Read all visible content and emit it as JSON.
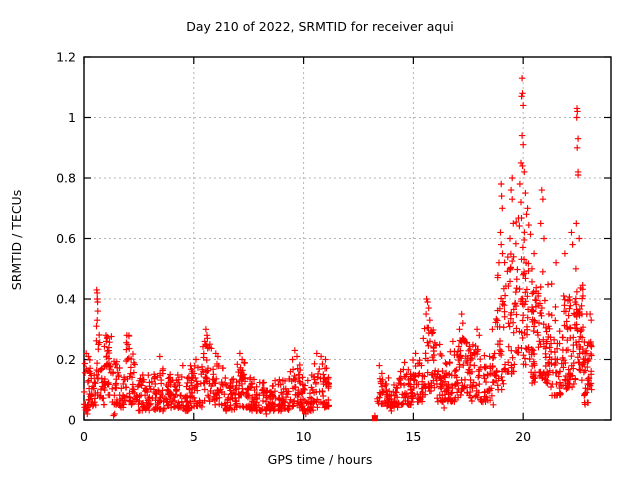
{
  "chart_data": {
    "type": "scatter",
    "title": "Day 210 of 2022, SRMTID for receiver aqui",
    "xlabel": "GPS time / hours",
    "ylabel": "SRMTID / TECUs",
    "xlim": [
      0,
      24
    ],
    "ylim": [
      0,
      1.2
    ],
    "xticks": [
      0,
      5,
      10,
      15,
      20
    ],
    "xtick_labels": [
      "0",
      "5",
      "10",
      "15",
      "20"
    ],
    "yticks": [
      0,
      0.2,
      0.4,
      0.6,
      0.8,
      1,
      1.2
    ],
    "ytick_labels": [
      "0",
      "0.2",
      "0.4",
      "0.6",
      "0.8",
      "1",
      "1.2"
    ],
    "legend": "none",
    "grid": {
      "visible": true,
      "style": "dashed",
      "color": "#b4b4b4"
    },
    "marker": {
      "shape": "plus",
      "color": "#ff0000",
      "size": 7
    },
    "background": "#ffffff",
    "data_gap_hours": [
      11.15,
      13.2
    ],
    "peak_value": 1.13,
    "peak_time": 19.95,
    "seed": 42,
    "bands": [
      [
        0.0,
        0.3,
        0.03,
        0.2,
        28,
        1.6
      ],
      [
        0.3,
        0.55,
        0.04,
        0.15,
        18,
        1.5
      ],
      [
        0.55,
        0.72,
        0.08,
        0.3,
        12,
        1.0
      ],
      [
        0.72,
        0.92,
        0.05,
        0.18,
        15,
        1.5
      ],
      [
        0.92,
        1.25,
        0.08,
        0.28,
        30,
        1.2
      ],
      [
        1.25,
        1.55,
        0.05,
        0.2,
        22,
        1.5
      ],
      [
        1.55,
        1.85,
        0.04,
        0.18,
        22,
        1.5
      ],
      [
        1.85,
        2.15,
        0.06,
        0.28,
        24,
        1.6
      ],
      [
        2.15,
        2.45,
        0.05,
        0.22,
        20,
        1.8
      ],
      [
        2.45,
        3.05,
        0.03,
        0.15,
        45,
        1.5
      ],
      [
        3.05,
        3.65,
        0.03,
        0.17,
        45,
        1.5
      ],
      [
        3.65,
        4.25,
        0.04,
        0.16,
        45,
        1.5
      ],
      [
        4.25,
        4.85,
        0.03,
        0.15,
        45,
        1.5
      ],
      [
        4.85,
        5.4,
        0.04,
        0.18,
        42,
        1.5
      ],
      [
        5.4,
        5.85,
        0.06,
        0.26,
        30,
        1.3
      ],
      [
        5.85,
        6.35,
        0.05,
        0.2,
        35,
        1.5
      ],
      [
        6.35,
        6.95,
        0.03,
        0.14,
        45,
        1.5
      ],
      [
        6.95,
        7.45,
        0.04,
        0.19,
        38,
        1.5
      ],
      [
        7.45,
        8.05,
        0.03,
        0.14,
        45,
        1.5
      ],
      [
        8.05,
        8.65,
        0.03,
        0.13,
        45,
        1.5
      ],
      [
        8.65,
        9.35,
        0.03,
        0.14,
        50,
        1.5
      ],
      [
        9.35,
        9.95,
        0.04,
        0.19,
        42,
        1.5
      ],
      [
        9.95,
        10.45,
        0.03,
        0.15,
        38,
        1.5
      ],
      [
        10.45,
        11.15,
        0.04,
        0.19,
        52,
        1.5
      ],
      [
        13.35,
        13.75,
        0.05,
        0.16,
        22,
        1.5
      ],
      [
        13.75,
        14.35,
        0.04,
        0.14,
        40,
        1.5
      ],
      [
        14.35,
        14.95,
        0.05,
        0.17,
        45,
        1.5
      ],
      [
        14.95,
        15.45,
        0.06,
        0.2,
        40,
        1.4
      ],
      [
        15.45,
        16.05,
        0.08,
        0.31,
        45,
        1.3
      ],
      [
        16.05,
        16.55,
        0.06,
        0.22,
        40,
        1.5
      ],
      [
        16.55,
        17.05,
        0.06,
        0.23,
        40,
        1.4
      ],
      [
        17.05,
        17.55,
        0.08,
        0.28,
        40,
        1.3
      ],
      [
        17.55,
        18.15,
        0.06,
        0.25,
        45,
        1.4
      ],
      [
        18.15,
        18.65,
        0.05,
        0.22,
        35,
        1.5
      ],
      [
        18.65,
        19.15,
        0.1,
        0.48,
        40,
        1.3
      ],
      [
        19.15,
        19.65,
        0.15,
        0.55,
        40,
        1.2
      ],
      [
        19.65,
        20.35,
        0.18,
        0.68,
        62,
        1.1
      ],
      [
        20.35,
        20.75,
        0.12,
        0.46,
        45,
        1.3
      ],
      [
        20.75,
        21.15,
        0.12,
        0.5,
        40,
        1.3
      ],
      [
        21.15,
        21.75,
        0.08,
        0.38,
        45,
        1.4
      ],
      [
        21.75,
        22.35,
        0.1,
        0.43,
        58,
        1.2
      ],
      [
        22.35,
        22.75,
        0.13,
        0.45,
        48,
        1.2
      ],
      [
        22.75,
        23.0,
        0.05,
        0.27,
        28,
        1.4
      ],
      [
        23.0,
        23.15,
        0.08,
        0.26,
        14,
        1.3
      ]
    ],
    "points": [
      [
        0.1,
        0.22
      ],
      [
        0.2,
        0.21
      ],
      [
        0.15,
        0.02
      ],
      [
        0.58,
        0.43
      ],
      [
        0.6,
        0.42
      ],
      [
        0.61,
        0.4
      ],
      [
        0.6,
        0.4
      ],
      [
        0.62,
        0.39
      ],
      [
        0.63,
        0.36
      ],
      [
        0.6,
        0.33
      ],
      [
        0.57,
        0.31
      ],
      [
        0.66,
        0.25
      ],
      [
        1.0,
        0.28
      ],
      [
        1.05,
        0.27
      ],
      [
        1.35,
        0.015
      ],
      [
        1.4,
        0.02
      ],
      [
        1.95,
        0.28
      ],
      [
        2.0,
        0.25
      ],
      [
        3.45,
        0.21
      ],
      [
        4.5,
        0.18
      ],
      [
        5.1,
        0.2
      ],
      [
        5.55,
        0.3
      ],
      [
        5.6,
        0.28
      ],
      [
        5.62,
        0.27
      ],
      [
        5.5,
        0.26
      ],
      [
        5.7,
        0.24
      ],
      [
        6.0,
        0.22
      ],
      [
        6.1,
        0.21
      ],
      [
        7.1,
        0.22
      ],
      [
        7.2,
        0.2
      ],
      [
        8.3,
        0.02
      ],
      [
        9.6,
        0.23
      ],
      [
        9.7,
        0.21
      ],
      [
        9.5,
        0.2
      ],
      [
        10.1,
        0.02
      ],
      [
        10.6,
        0.22
      ],
      [
        10.8,
        0.21
      ],
      [
        11.0,
        0.2
      ],
      [
        13.25,
        0.006,
        "sq"
      ],
      [
        13.25,
        0.014
      ],
      [
        13.45,
        0.18
      ],
      [
        14.0,
        0.03
      ],
      [
        14.6,
        0.19
      ],
      [
        15.1,
        0.22
      ],
      [
        15.6,
        0.4
      ],
      [
        15.65,
        0.39
      ],
      [
        15.7,
        0.37
      ],
      [
        15.58,
        0.35
      ],
      [
        15.75,
        0.33
      ],
      [
        16.2,
        0.25
      ],
      [
        16.4,
        0.04
      ],
      [
        16.8,
        0.26
      ],
      [
        17.2,
        0.35
      ],
      [
        17.25,
        0.32
      ],
      [
        17.1,
        0.3
      ],
      [
        17.9,
        0.3
      ],
      [
        18.0,
        0.28
      ],
      [
        18.6,
        0.3
      ],
      [
        18.9,
        0.52
      ],
      [
        19.0,
        0.78
      ],
      [
        19.02,
        0.74
      ],
      [
        19.05,
        0.7
      ],
      [
        18.97,
        0.62
      ],
      [
        19.0,
        0.58
      ],
      [
        19.06,
        0.55
      ],
      [
        19.5,
        0.8
      ],
      [
        19.45,
        0.76
      ],
      [
        19.5,
        0.73
      ],
      [
        19.55,
        0.65
      ],
      [
        19.4,
        0.6
      ],
      [
        19.95,
        1.13
      ],
      [
        19.97,
        1.08
      ],
      [
        19.93,
        1.07
      ],
      [
        20.0,
        1.04
      ],
      [
        19.95,
        0.94
      ],
      [
        20.0,
        0.91
      ],
      [
        19.9,
        0.85
      ],
      [
        19.97,
        0.84
      ],
      [
        20.05,
        0.82
      ],
      [
        19.85,
        0.78
      ],
      [
        20.1,
        0.75
      ],
      [
        19.9,
        0.72
      ],
      [
        20.2,
        0.7
      ],
      [
        20.15,
        0.68
      ],
      [
        20.5,
        0.55
      ],
      [
        20.4,
        0.5
      ],
      [
        20.85,
        0.76
      ],
      [
        20.9,
        0.73
      ],
      [
        20.8,
        0.65
      ],
      [
        20.95,
        0.6
      ],
      [
        21.5,
        0.52
      ],
      [
        21.3,
        0.45
      ],
      [
        21.9,
        0.55
      ],
      [
        22.2,
        0.62
      ],
      [
        22.25,
        0.58
      ],
      [
        22.45,
        1.03
      ],
      [
        22.47,
        1.02
      ],
      [
        22.44,
        1.0
      ],
      [
        22.5,
        0.93
      ],
      [
        22.46,
        0.9
      ],
      [
        22.5,
        0.82
      ],
      [
        22.5,
        0.81
      ],
      [
        22.42,
        0.65
      ],
      [
        22.55,
        0.6
      ],
      [
        22.4,
        0.5
      ],
      [
        22.9,
        0.35
      ],
      [
        23.05,
        0.35
      ],
      [
        23.1,
        0.33
      ]
    ]
  }
}
